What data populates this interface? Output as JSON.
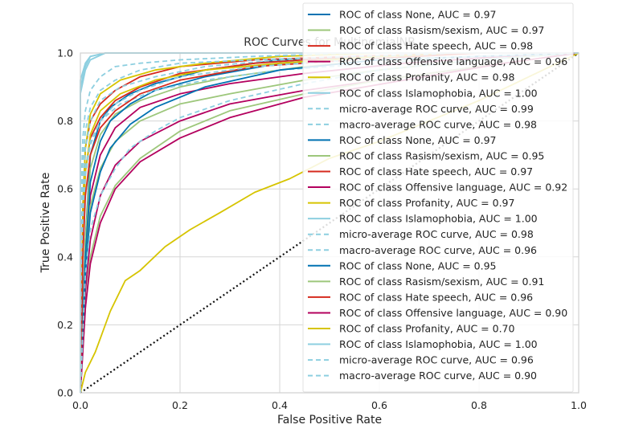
{
  "chart_data": {
    "type": "line",
    "title": "ROC Curves for MultinomialNB",
    "xlabel": "False Positive Rate",
    "ylabel": "True Positive Rate",
    "xlim": [
      0,
      1
    ],
    "ylim": [
      0,
      1
    ],
    "xticks": [
      "0.0",
      "0.2",
      "0.4",
      "0.6",
      "0.8",
      "1.0"
    ],
    "yticks": [
      "0.0",
      "0.2",
      "0.4",
      "0.6",
      "0.8",
      "1.0"
    ],
    "grid": true,
    "legend_position": "top-right",
    "diagonal_style": "dotted",
    "colors": {
      "None": "#0072b2",
      "Rasism/sexism": "#9dc77b",
      "Hate speech": "#d62a1e",
      "Offensive language": "#b3005e",
      "Profanity": "#d6c400",
      "Islamophobia": "#8dcfe0",
      "average": "#8dcfe0",
      "diagonal": "#111111"
    },
    "series": [
      {
        "name": "ROC of class None, AUC = 0.97",
        "class": "None",
        "dashed": false,
        "x": [
          0,
          0.01,
          0.02,
          0.04,
          0.06,
          0.1,
          0.15,
          0.25,
          0.4,
          0.6,
          0.8,
          1
        ],
        "y": [
          0,
          0.45,
          0.7,
          0.8,
          0.84,
          0.88,
          0.91,
          0.95,
          0.98,
          0.99,
          1,
          1
        ]
      },
      {
        "name": "ROC of class Rasism/sexism, AUC = 0.97",
        "class": "Rasism/sexism",
        "dashed": false,
        "x": [
          0,
          0.01,
          0.02,
          0.04,
          0.07,
          0.12,
          0.2,
          0.3,
          0.45,
          0.6,
          0.8,
          1
        ],
        "y": [
          0,
          0.45,
          0.66,
          0.76,
          0.82,
          0.86,
          0.9,
          0.93,
          0.96,
          0.98,
          0.99,
          1
        ]
      },
      {
        "name": "ROC of class Hate speech, AUC = 0.98",
        "class": "Hate speech",
        "dashed": false,
        "x": [
          0,
          0.005,
          0.01,
          0.02,
          0.04,
          0.07,
          0.12,
          0.2,
          0.35,
          0.55,
          0.8,
          1
        ],
        "y": [
          0,
          0.55,
          0.72,
          0.8,
          0.85,
          0.89,
          0.93,
          0.96,
          0.98,
          0.99,
          1,
          1
        ]
      },
      {
        "name": "ROC of class Offensive language, AUC = 0.96",
        "class": "Offensive language",
        "dashed": false,
        "x": [
          0,
          0.01,
          0.02,
          0.04,
          0.07,
          0.12,
          0.2,
          0.3,
          0.45,
          0.65,
          0.85,
          1
        ],
        "y": [
          0,
          0.4,
          0.58,
          0.7,
          0.78,
          0.84,
          0.88,
          0.91,
          0.94,
          0.97,
          0.99,
          1
        ]
      },
      {
        "name": "ROC of class Profanity, AUC = 0.98",
        "class": "Profanity",
        "dashed": false,
        "x": [
          0,
          0.005,
          0.01,
          0.02,
          0.04,
          0.08,
          0.15,
          0.25,
          0.4,
          0.6,
          0.8,
          1
        ],
        "y": [
          0,
          0.55,
          0.72,
          0.82,
          0.88,
          0.92,
          0.95,
          0.97,
          0.99,
          1,
          1,
          1
        ]
      },
      {
        "name": "ROC of class Islamophobia, AUC = 1.00",
        "class": "Islamophobia",
        "dashed": false,
        "x": [
          0,
          0,
          0.01,
          0.02,
          0.05,
          0.2,
          0.4,
          0.6,
          0.8,
          1
        ],
        "y": [
          0,
          0.92,
          0.97,
          0.99,
          1,
          1,
          1,
          1,
          1,
          1
        ]
      },
      {
        "name": "micro-average ROC curve, AUC = 0.99",
        "class": "average",
        "dashed": true,
        "x": [
          0,
          0.002,
          0.005,
          0.01,
          0.02,
          0.04,
          0.07,
          0.12,
          0.2,
          0.35,
          0.55,
          0.8,
          1
        ],
        "y": [
          0,
          0.62,
          0.75,
          0.83,
          0.89,
          0.93,
          0.96,
          0.97,
          0.98,
          0.99,
          1,
          1,
          1
        ]
      },
      {
        "name": "macro-average ROC curve, AUC = 0.98",
        "class": "average",
        "dashed": true,
        "x": [
          0,
          0.005,
          0.01,
          0.02,
          0.04,
          0.08,
          0.15,
          0.25,
          0.4,
          0.6,
          0.8,
          1
        ],
        "y": [
          0,
          0.6,
          0.72,
          0.8,
          0.86,
          0.9,
          0.93,
          0.96,
          0.98,
          0.99,
          1,
          1
        ]
      },
      {
        "name": "ROC of class None, AUC = 0.97",
        "class": "None",
        "dashed": false,
        "x": [
          0,
          0.01,
          0.02,
          0.04,
          0.06,
          0.1,
          0.15,
          0.25,
          0.4,
          0.6,
          0.8,
          1
        ],
        "y": [
          0,
          0.4,
          0.62,
          0.74,
          0.8,
          0.85,
          0.89,
          0.93,
          0.97,
          0.99,
          1,
          1
        ]
      },
      {
        "name": "ROC of class Rasism/sexism, AUC = 0.95",
        "class": "Rasism/sexism",
        "dashed": false,
        "x": [
          0,
          0.01,
          0.02,
          0.04,
          0.07,
          0.12,
          0.2,
          0.3,
          0.45,
          0.6,
          0.8,
          1
        ],
        "y": [
          0,
          0.35,
          0.55,
          0.66,
          0.74,
          0.8,
          0.85,
          0.88,
          0.92,
          0.95,
          0.98,
          1
        ]
      },
      {
        "name": "ROC of class Hate speech, AUC = 0.97",
        "class": "Hate speech",
        "dashed": false,
        "x": [
          0,
          0.005,
          0.01,
          0.02,
          0.04,
          0.07,
          0.12,
          0.2,
          0.35,
          0.55,
          0.8,
          1
        ],
        "y": [
          0,
          0.48,
          0.65,
          0.75,
          0.81,
          0.86,
          0.9,
          0.94,
          0.97,
          0.99,
          1,
          1
        ]
      },
      {
        "name": "ROC of class Offensive language, AUC = 0.92",
        "class": "Offensive language",
        "dashed": false,
        "x": [
          0,
          0.01,
          0.02,
          0.04,
          0.07,
          0.12,
          0.2,
          0.3,
          0.45,
          0.65,
          0.85,
          1
        ],
        "y": [
          0,
          0.3,
          0.45,
          0.58,
          0.67,
          0.74,
          0.8,
          0.85,
          0.89,
          0.93,
          0.97,
          1
        ]
      },
      {
        "name": "ROC of class Profanity, AUC = 0.97",
        "class": "Profanity",
        "dashed": false,
        "x": [
          0,
          0.005,
          0.01,
          0.02,
          0.04,
          0.08,
          0.15,
          0.25,
          0.4,
          0.6,
          0.8,
          1
        ],
        "y": [
          0,
          0.45,
          0.65,
          0.76,
          0.83,
          0.88,
          0.92,
          0.95,
          0.97,
          0.99,
          1,
          1
        ]
      },
      {
        "name": "ROC of class Islamophobia, AUC = 1.00",
        "class": "Islamophobia",
        "dashed": false,
        "x": [
          0,
          0,
          0.01,
          0.02,
          0.05,
          0.2,
          0.4,
          0.6,
          0.8,
          1
        ],
        "y": [
          0,
          0.9,
          0.96,
          0.99,
          1,
          1,
          1,
          1,
          1,
          1
        ]
      },
      {
        "name": "micro-average ROC curve, AUC = 0.98",
        "class": "average",
        "dashed": true,
        "x": [
          0,
          0.002,
          0.005,
          0.01,
          0.02,
          0.04,
          0.07,
          0.12,
          0.2,
          0.35,
          0.55,
          0.8,
          1
        ],
        "y": [
          0,
          0.55,
          0.68,
          0.77,
          0.84,
          0.89,
          0.92,
          0.95,
          0.97,
          0.98,
          0.99,
          1,
          1
        ]
      },
      {
        "name": "macro-average ROC curve, AUC = 0.96",
        "class": "average",
        "dashed": true,
        "x": [
          0,
          0.005,
          0.01,
          0.02,
          0.04,
          0.08,
          0.15,
          0.25,
          0.4,
          0.6,
          0.8,
          1
        ],
        "y": [
          0,
          0.5,
          0.64,
          0.73,
          0.8,
          0.85,
          0.89,
          0.92,
          0.95,
          0.97,
          0.99,
          1
        ]
      },
      {
        "name": "ROC of class None, AUC = 0.95",
        "class": "None",
        "dashed": false,
        "x": [
          0,
          0.01,
          0.02,
          0.04,
          0.06,
          0.1,
          0.15,
          0.25,
          0.4,
          0.6,
          0.8,
          1
        ],
        "y": [
          0,
          0.35,
          0.53,
          0.65,
          0.72,
          0.79,
          0.84,
          0.9,
          0.95,
          0.98,
          0.99,
          1
        ]
      },
      {
        "name": "ROC of class Rasism/sexism, AUC = 0.91",
        "class": "Rasism/sexism",
        "dashed": false,
        "x": [
          0,
          0.01,
          0.02,
          0.04,
          0.07,
          0.12,
          0.2,
          0.3,
          0.45,
          0.6,
          0.8,
          1
        ],
        "y": [
          0,
          0.25,
          0.4,
          0.52,
          0.61,
          0.69,
          0.77,
          0.83,
          0.88,
          0.92,
          0.96,
          1
        ]
      },
      {
        "name": "ROC of class Hate speech, AUC = 0.96",
        "class": "Hate speech",
        "dashed": false,
        "x": [
          0,
          0.005,
          0.01,
          0.02,
          0.04,
          0.07,
          0.12,
          0.2,
          0.35,
          0.55,
          0.8,
          1
        ],
        "y": [
          0,
          0.4,
          0.58,
          0.7,
          0.78,
          0.83,
          0.88,
          0.92,
          0.96,
          0.98,
          1,
          1
        ]
      },
      {
        "name": "ROC of class Offensive language, AUC = 0.90",
        "class": "Offensive language",
        "dashed": false,
        "x": [
          0,
          0.01,
          0.02,
          0.04,
          0.07,
          0.12,
          0.2,
          0.3,
          0.45,
          0.65,
          0.85,
          1
        ],
        "y": [
          0,
          0.25,
          0.38,
          0.5,
          0.6,
          0.68,
          0.75,
          0.81,
          0.87,
          0.92,
          0.97,
          1
        ]
      },
      {
        "name": "ROC of class Profanity, AUC = 0.70",
        "class": "Profanity",
        "dashed": false,
        "x": [
          0,
          0.01,
          0.03,
          0.06,
          0.09,
          0.12,
          0.17,
          0.22,
          0.28,
          0.35,
          0.42,
          0.5,
          0.6,
          0.7,
          0.8,
          0.9,
          1
        ],
        "y": [
          0,
          0.06,
          0.12,
          0.24,
          0.33,
          0.36,
          0.43,
          0.48,
          0.53,
          0.59,
          0.63,
          0.69,
          0.74,
          0.8,
          0.86,
          0.93,
          1
        ]
      },
      {
        "name": "ROC of class Islamophobia, AUC = 1.00",
        "class": "Islamophobia",
        "dashed": false,
        "x": [
          0,
          0,
          0.01,
          0.02,
          0.05,
          0.2,
          0.4,
          0.6,
          0.8,
          1
        ],
        "y": [
          0,
          0.88,
          0.95,
          0.98,
          1,
          1,
          1,
          1,
          1,
          1
        ]
      },
      {
        "name": "micro-average ROC curve, AUC = 0.96",
        "class": "average",
        "dashed": true,
        "x": [
          0,
          0.002,
          0.005,
          0.01,
          0.02,
          0.04,
          0.07,
          0.12,
          0.2,
          0.35,
          0.55,
          0.8,
          1
        ],
        "y": [
          0,
          0.45,
          0.57,
          0.66,
          0.74,
          0.8,
          0.85,
          0.89,
          0.93,
          0.96,
          0.98,
          0.99,
          1
        ]
      },
      {
        "name": "macro-average ROC curve, AUC = 0.90",
        "class": "average",
        "dashed": true,
        "x": [
          0,
          0.01,
          0.02,
          0.04,
          0.07,
          0.1,
          0.15,
          0.2,
          0.3,
          0.45,
          0.6,
          0.8,
          1
        ],
        "y": [
          0,
          0.35,
          0.48,
          0.58,
          0.66,
          0.72,
          0.77,
          0.81,
          0.86,
          0.91,
          0.95,
          0.98,
          1
        ]
      }
    ]
  }
}
